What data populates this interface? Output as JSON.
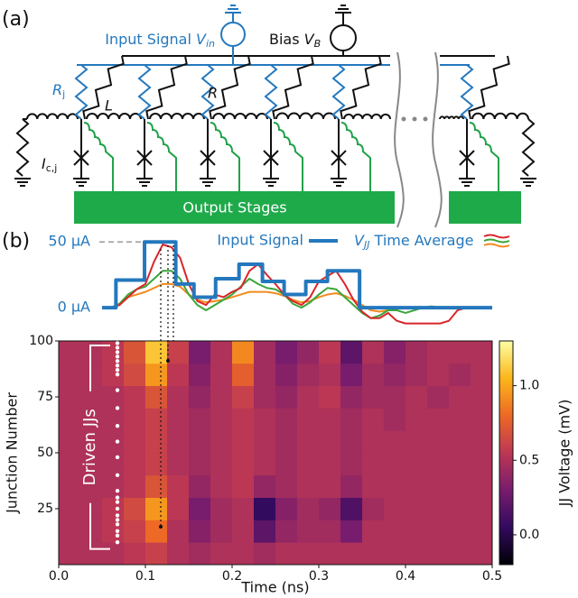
{
  "panel_labels": [
    "(a)",
    "(b)"
  ],
  "circuit": {
    "input_label": {
      "text": "Input Signal ",
      "symbol": "V",
      "subscript": "in"
    },
    "bias_label": {
      "text": "Bias ",
      "symbol": "V",
      "subscript": "B"
    },
    "rj_label": {
      "symbol": "R",
      "subscript": "j"
    },
    "l_label": "L",
    "r_label": "R",
    "ic_label": {
      "symbol": "I",
      "subscript": "c,j"
    },
    "output_label": "Output Stages"
  },
  "chart_data": [
    {
      "type": "line",
      "x": [
        0.05,
        0.06,
        0.07,
        0.08,
        0.09,
        0.1,
        0.11,
        0.12,
        0.13,
        0.14,
        0.15,
        0.16,
        0.17,
        0.18,
        0.19,
        0.2,
        0.21,
        0.22,
        0.23,
        0.24,
        0.25,
        0.26,
        0.27,
        0.28,
        0.29,
        0.3,
        0.31,
        0.32,
        0.33,
        0.34,
        0.35,
        0.36,
        0.37,
        0.38,
        0.39,
        0.4,
        0.41,
        0.42,
        0.43,
        0.44,
        0.45,
        0.46,
        0.47,
        0.48,
        0.49,
        0.5
      ],
      "xlim": [
        0,
        0.5
      ],
      "ylim": [
        -15,
        57
      ],
      "yticks": [
        {
          "value": 50,
          "label": "50 μA"
        },
        {
          "value": 0,
          "label": "0 μA"
        }
      ],
      "series": [
        {
          "name": "Input Signal",
          "color": "#2478bd",
          "x": [
            0.05,
            0.066,
            0.066,
            0.099,
            0.099,
            0.135,
            0.135,
            0.156,
            0.156,
            0.181,
            0.181,
            0.208,
            0.208,
            0.235,
            0.235,
            0.26,
            0.26,
            0.285,
            0.285,
            0.31,
            0.31,
            0.347,
            0.347,
            0.5
          ],
          "values": [
            0,
            0,
            21,
            21,
            50,
            50,
            18,
            18,
            8,
            8,
            22,
            22,
            33,
            33,
            20,
            20,
            10,
            10,
            20,
            20,
            28,
            28,
            0,
            0
          ]
        },
        {
          "color": "#d9262b",
          "values": [
            0,
            0,
            2,
            8,
            14,
            18,
            35,
            48,
            46,
            38,
            18,
            5,
            2,
            10,
            8,
            12,
            15,
            28,
            33,
            25,
            18,
            10,
            5,
            2,
            8,
            20,
            24,
            28,
            18,
            6,
            -3,
            -8,
            -8,
            -4,
            -10,
            -12,
            -12,
            -12,
            -12,
            -12,
            -10,
            -2,
            0,
            0,
            0,
            0
          ]
        },
        {
          "color": "#3aa63a",
          "values": [
            0,
            0,
            3,
            10,
            14,
            16,
            22,
            28,
            28,
            22,
            10,
            2,
            -2,
            2,
            6,
            10,
            16,
            22,
            18,
            15,
            14,
            10,
            3,
            0,
            4,
            10,
            15,
            14,
            8,
            2,
            -4,
            -8,
            -6,
            -2,
            -2,
            -4,
            -2,
            0,
            1,
            0,
            0,
            0,
            0,
            0,
            0,
            0
          ]
        },
        {
          "color": "#f28a1e",
          "values": [
            0,
            0,
            2,
            8,
            10,
            12,
            15,
            18,
            18,
            16,
            10,
            6,
            4,
            5,
            6,
            8,
            10,
            12,
            12,
            12,
            11,
            9,
            6,
            4,
            5,
            8,
            10,
            11,
            9,
            6,
            2,
            -2,
            -3,
            -2,
            -1,
            0,
            0,
            0,
            0,
            0,
            0,
            0,
            0,
            0,
            0,
            0
          ]
        }
      ],
      "legend_group": {
        "symbol": "V",
        "subscript": "JJ",
        "text": " Time Average"
      }
    },
    {
      "type": "heatmap",
      "xlabel": "Time (ns)",
      "ylabel": "Junction Number",
      "colorbar_label": "JJ Voltage (mV)",
      "xlim": [
        0,
        0.5
      ],
      "ylim": [
        0,
        100
      ],
      "xticks": [
        {
          "value": 0,
          "label": "0.0"
        },
        0.1,
        0.2,
        0.3,
        0.4,
        0.5
      ],
      "yticks": [
        25,
        50,
        75,
        100
      ],
      "clim": [
        -0.2,
        1.3
      ],
      "cticks": [
        {
          "value": 0,
          "label": "0.0"
        },
        0.5,
        {
          "value": 1,
          "label": "1.0"
        }
      ],
      "colormap": [
        "#000004",
        "#320a5e",
        "#781c6d",
        "#bc3754",
        "#ed6925",
        "#fbb61a",
        "#fcffa4"
      ],
      "z": [
        [
          0.5,
          0.5,
          0.5,
          0.55,
          0.6,
          0.5,
          0.45,
          0.5,
          0.5,
          0.45,
          0.5,
          0.5,
          0.5,
          0.5,
          0.5,
          0.5,
          0.5,
          0.5,
          0.5,
          0.5
        ],
        [
          0.5,
          0.5,
          0.55,
          0.6,
          0.8,
          0.5,
          0.35,
          0.45,
          0.5,
          0.2,
          0.4,
          0.45,
          0.45,
          0.3,
          0.5,
          0.5,
          0.5,
          0.5,
          0.5,
          0.5
        ],
        [
          0.5,
          0.5,
          0.55,
          0.65,
          0.95,
          0.55,
          0.3,
          0.45,
          0.5,
          0.05,
          0.35,
          0.45,
          0.4,
          0.15,
          0.45,
          0.5,
          0.5,
          0.5,
          0.5,
          0.5
        ],
        [
          0.5,
          0.5,
          0.5,
          0.55,
          0.7,
          0.55,
          0.4,
          0.5,
          0.55,
          0.4,
          0.45,
          0.5,
          0.5,
          0.4,
          0.5,
          0.5,
          0.5,
          0.5,
          0.5,
          0.5
        ],
        [
          0.5,
          0.5,
          0.5,
          0.55,
          0.6,
          0.5,
          0.45,
          0.5,
          0.55,
          0.5,
          0.45,
          0.5,
          0.5,
          0.45,
          0.5,
          0.5,
          0.5,
          0.5,
          0.5,
          0.5
        ],
        [
          0.5,
          0.5,
          0.5,
          0.55,
          0.6,
          0.5,
          0.45,
          0.5,
          0.55,
          0.5,
          0.45,
          0.5,
          0.5,
          0.45,
          0.5,
          0.5,
          0.5,
          0.5,
          0.5,
          0.5
        ],
        [
          0.5,
          0.5,
          0.5,
          0.55,
          0.6,
          0.5,
          0.45,
          0.5,
          0.55,
          0.5,
          0.45,
          0.5,
          0.5,
          0.45,
          0.5,
          0.45,
          0.5,
          0.5,
          0.5,
          0.5
        ],
        [
          0.5,
          0.5,
          0.5,
          0.55,
          0.7,
          0.5,
          0.4,
          0.5,
          0.6,
          0.45,
          0.4,
          0.5,
          0.55,
          0.4,
          0.45,
          0.45,
          0.5,
          0.45,
          0.5,
          0.5
        ],
        [
          0.5,
          0.5,
          0.55,
          0.65,
          0.95,
          0.55,
          0.35,
          0.5,
          0.75,
          0.45,
          0.35,
          0.45,
          0.5,
          0.3,
          0.45,
          0.4,
          0.45,
          0.5,
          0.45,
          0.5
        ],
        [
          0.5,
          0.5,
          0.55,
          0.7,
          1.1,
          0.6,
          0.3,
          0.5,
          0.9,
          0.45,
          0.3,
          0.4,
          0.55,
          0.2,
          0.5,
          0.35,
          0.45,
          0.5,
          0.5,
          0.5
        ]
      ],
      "driven_label": "Driven JJs",
      "driven_jjs": [
        99,
        97,
        95,
        93,
        91,
        89,
        87,
        85,
        78,
        70,
        62,
        55,
        48,
        40,
        33,
        30,
        28,
        25,
        22,
        20,
        18,
        15,
        13,
        10
      ]
    }
  ]
}
